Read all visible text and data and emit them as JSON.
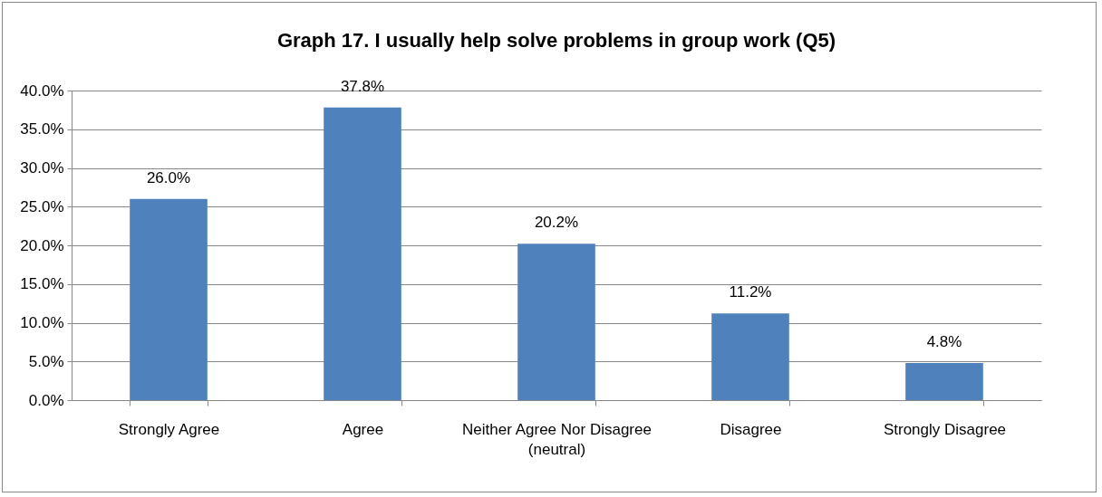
{
  "chart_data": {
    "type": "bar",
    "title": "Graph 17. I usually help solve problems in group work (Q5)",
    "categories": [
      "Strongly Agree",
      "Agree",
      "Neither Agree Nor Disagree (neutral)",
      "Disagree",
      "Strongly Disagree"
    ],
    "values": [
      26.0,
      37.8,
      20.2,
      11.2,
      4.8
    ],
    "value_labels": [
      "26.0%",
      "37.8%",
      "20.2%",
      "11.2%",
      "4.8%"
    ],
    "color": "#4f81bd",
    "ylim": [
      0,
      40
    ],
    "yticks": [
      {
        "value": 0,
        "label": "0.0%"
      },
      {
        "value": 5,
        "label": "5.0%"
      },
      {
        "value": 10,
        "label": "10.0%"
      },
      {
        "value": 15,
        "label": "15.0%"
      },
      {
        "value": 20,
        "label": "20.0%"
      },
      {
        "value": 25,
        "label": "25.0%"
      },
      {
        "value": 30,
        "label": "30.0%"
      },
      {
        "value": 35,
        "label": "35.0%"
      },
      {
        "value": 40,
        "label": "40.0%"
      }
    ],
    "grid": "y"
  }
}
